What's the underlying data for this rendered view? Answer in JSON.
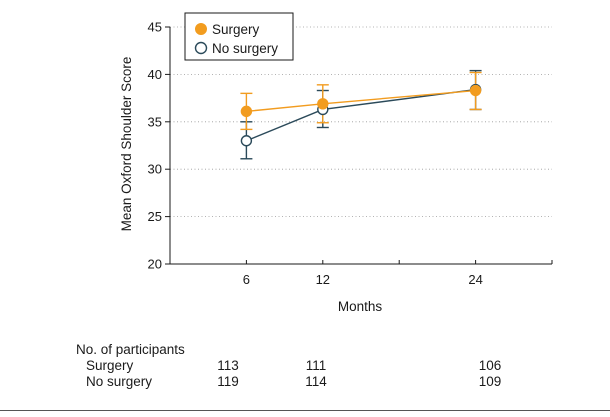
{
  "chart_data": {
    "type": "line",
    "title": "",
    "xlabel": "Months",
    "ylabel": "Mean Oxford Shoulder Score",
    "ylim": [
      20,
      45
    ],
    "yticks": [
      20,
      25,
      30,
      35,
      40,
      45
    ],
    "xticks": [
      6,
      12,
      24
    ],
    "grid": "horizontal-dotted",
    "legend_position": "top-left",
    "series": [
      {
        "name": "Surgery",
        "color": "#F29C1F",
        "marker": "filled-circle",
        "x": [
          6,
          12,
          24
        ],
        "y": [
          36.1,
          36.9,
          38.3
        ],
        "ci_low": [
          34.2,
          34.9,
          36.3
        ],
        "ci_high": [
          38.0,
          38.9,
          40.2
        ]
      },
      {
        "name": "No surgery",
        "color": "#2B4A5A",
        "marker": "open-circle",
        "x": [
          6,
          12,
          24
        ],
        "y": [
          33.0,
          36.3,
          38.4
        ],
        "ci_low": [
          31.1,
          34.4,
          36.3
        ],
        "ci_high": [
          35.0,
          38.3,
          40.4
        ]
      }
    ]
  },
  "participants": {
    "title": "No. of participants",
    "rows": [
      {
        "label": "Surgery",
        "values": [
          "113",
          "111",
          "106"
        ]
      },
      {
        "label": "No surgery",
        "values": [
          "119",
          "114",
          "109"
        ]
      }
    ]
  }
}
